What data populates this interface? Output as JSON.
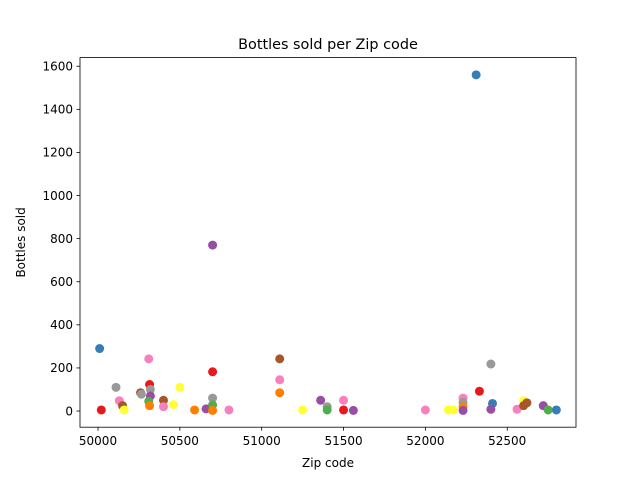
{
  "chart_data": {
    "type": "scatter",
    "title": "Bottles sold per Zip code",
    "xlabel": "Zip code",
    "ylabel": "Bottles sold",
    "xlim": [
      49890,
      52920
    ],
    "ylim": [
      -75,
      1640
    ],
    "xticks": [
      50000,
      50500,
      51000,
      51500,
      52000,
      52500
    ],
    "yticks": [
      0,
      200,
      400,
      600,
      800,
      1000,
      1200,
      1400,
      1600
    ],
    "grid": false,
    "legend": "none",
    "points": [
      {
        "x": 50010,
        "y": 290,
        "color": "#377eb8"
      },
      {
        "x": 50020,
        "y": 5,
        "color": "#e41a1c"
      },
      {
        "x": 50110,
        "y": 110,
        "color": "#999999"
      },
      {
        "x": 50130,
        "y": 48,
        "color": "#f781bf"
      },
      {
        "x": 50150,
        "y": 25,
        "color": "#a65628"
      },
      {
        "x": 50160,
        "y": 5,
        "color": "#ffff33"
      },
      {
        "x": 50260,
        "y": 85,
        "color": "#a65628"
      },
      {
        "x": 50265,
        "y": 78,
        "color": "#999999"
      },
      {
        "x": 50310,
        "y": 242,
        "color": "#f781bf"
      },
      {
        "x": 50315,
        "y": 123,
        "color": "#e41a1c"
      },
      {
        "x": 50320,
        "y": 100,
        "color": "#999999"
      },
      {
        "x": 50320,
        "y": 70,
        "color": "#984ea3"
      },
      {
        "x": 50310,
        "y": 45,
        "color": "#4daf4a"
      },
      {
        "x": 50315,
        "y": 25,
        "color": "#ff7f00"
      },
      {
        "x": 50400,
        "y": 50,
        "color": "#a65628"
      },
      {
        "x": 50400,
        "y": 20,
        "color": "#f781bf"
      },
      {
        "x": 50460,
        "y": 30,
        "color": "#ffff33"
      },
      {
        "x": 50500,
        "y": 110,
        "color": "#ffff33"
      },
      {
        "x": 50590,
        "y": 5,
        "color": "#ff7f00"
      },
      {
        "x": 50660,
        "y": 10,
        "color": "#984ea3"
      },
      {
        "x": 50700,
        "y": 770,
        "color": "#984ea3"
      },
      {
        "x": 50700,
        "y": 182,
        "color": "#e41a1c"
      },
      {
        "x": 50700,
        "y": 60,
        "color": "#999999"
      },
      {
        "x": 50700,
        "y": 28,
        "color": "#4daf4a"
      },
      {
        "x": 50700,
        "y": 3,
        "color": "#ff7f00"
      },
      {
        "x": 50800,
        "y": 5,
        "color": "#f781bf"
      },
      {
        "x": 51110,
        "y": 242,
        "color": "#a65628"
      },
      {
        "x": 51110,
        "y": 145,
        "color": "#f781bf"
      },
      {
        "x": 51110,
        "y": 85,
        "color": "#ff7f00"
      },
      {
        "x": 51250,
        "y": 5,
        "color": "#ffff33"
      },
      {
        "x": 51360,
        "y": 50,
        "color": "#984ea3"
      },
      {
        "x": 51400,
        "y": 20,
        "color": "#999999"
      },
      {
        "x": 51400,
        "y": 5,
        "color": "#4daf4a"
      },
      {
        "x": 51500,
        "y": 50,
        "color": "#f781bf"
      },
      {
        "x": 51500,
        "y": 5,
        "color": "#e41a1c"
      },
      {
        "x": 51560,
        "y": 3,
        "color": "#984ea3"
      },
      {
        "x": 52000,
        "y": 5,
        "color": "#f781bf"
      },
      {
        "x": 52140,
        "y": 5,
        "color": "#ffff33"
      },
      {
        "x": 52170,
        "y": 5,
        "color": "#ffff33"
      },
      {
        "x": 52230,
        "y": 60,
        "color": "#f781bf"
      },
      {
        "x": 52230,
        "y": 40,
        "color": "#999999"
      },
      {
        "x": 52230,
        "y": 20,
        "color": "#ff7f00"
      },
      {
        "x": 52230,
        "y": 3,
        "color": "#984ea3"
      },
      {
        "x": 52310,
        "y": 1560,
        "color": "#377eb8"
      },
      {
        "x": 52330,
        "y": 92,
        "color": "#e41a1c"
      },
      {
        "x": 52400,
        "y": 218,
        "color": "#999999"
      },
      {
        "x": 52410,
        "y": 35,
        "color": "#377eb8"
      },
      {
        "x": 52400,
        "y": 8,
        "color": "#984ea3"
      },
      {
        "x": 52560,
        "y": 8,
        "color": "#f781bf"
      },
      {
        "x": 52600,
        "y": 48,
        "color": "#ffff33"
      },
      {
        "x": 52620,
        "y": 38,
        "color": "#a65628"
      },
      {
        "x": 52600,
        "y": 25,
        "color": "#a65628"
      },
      {
        "x": 52720,
        "y": 25,
        "color": "#984ea3"
      },
      {
        "x": 52750,
        "y": 5,
        "color": "#4daf4a"
      },
      {
        "x": 52800,
        "y": 5,
        "color": "#377eb8"
      }
    ]
  }
}
